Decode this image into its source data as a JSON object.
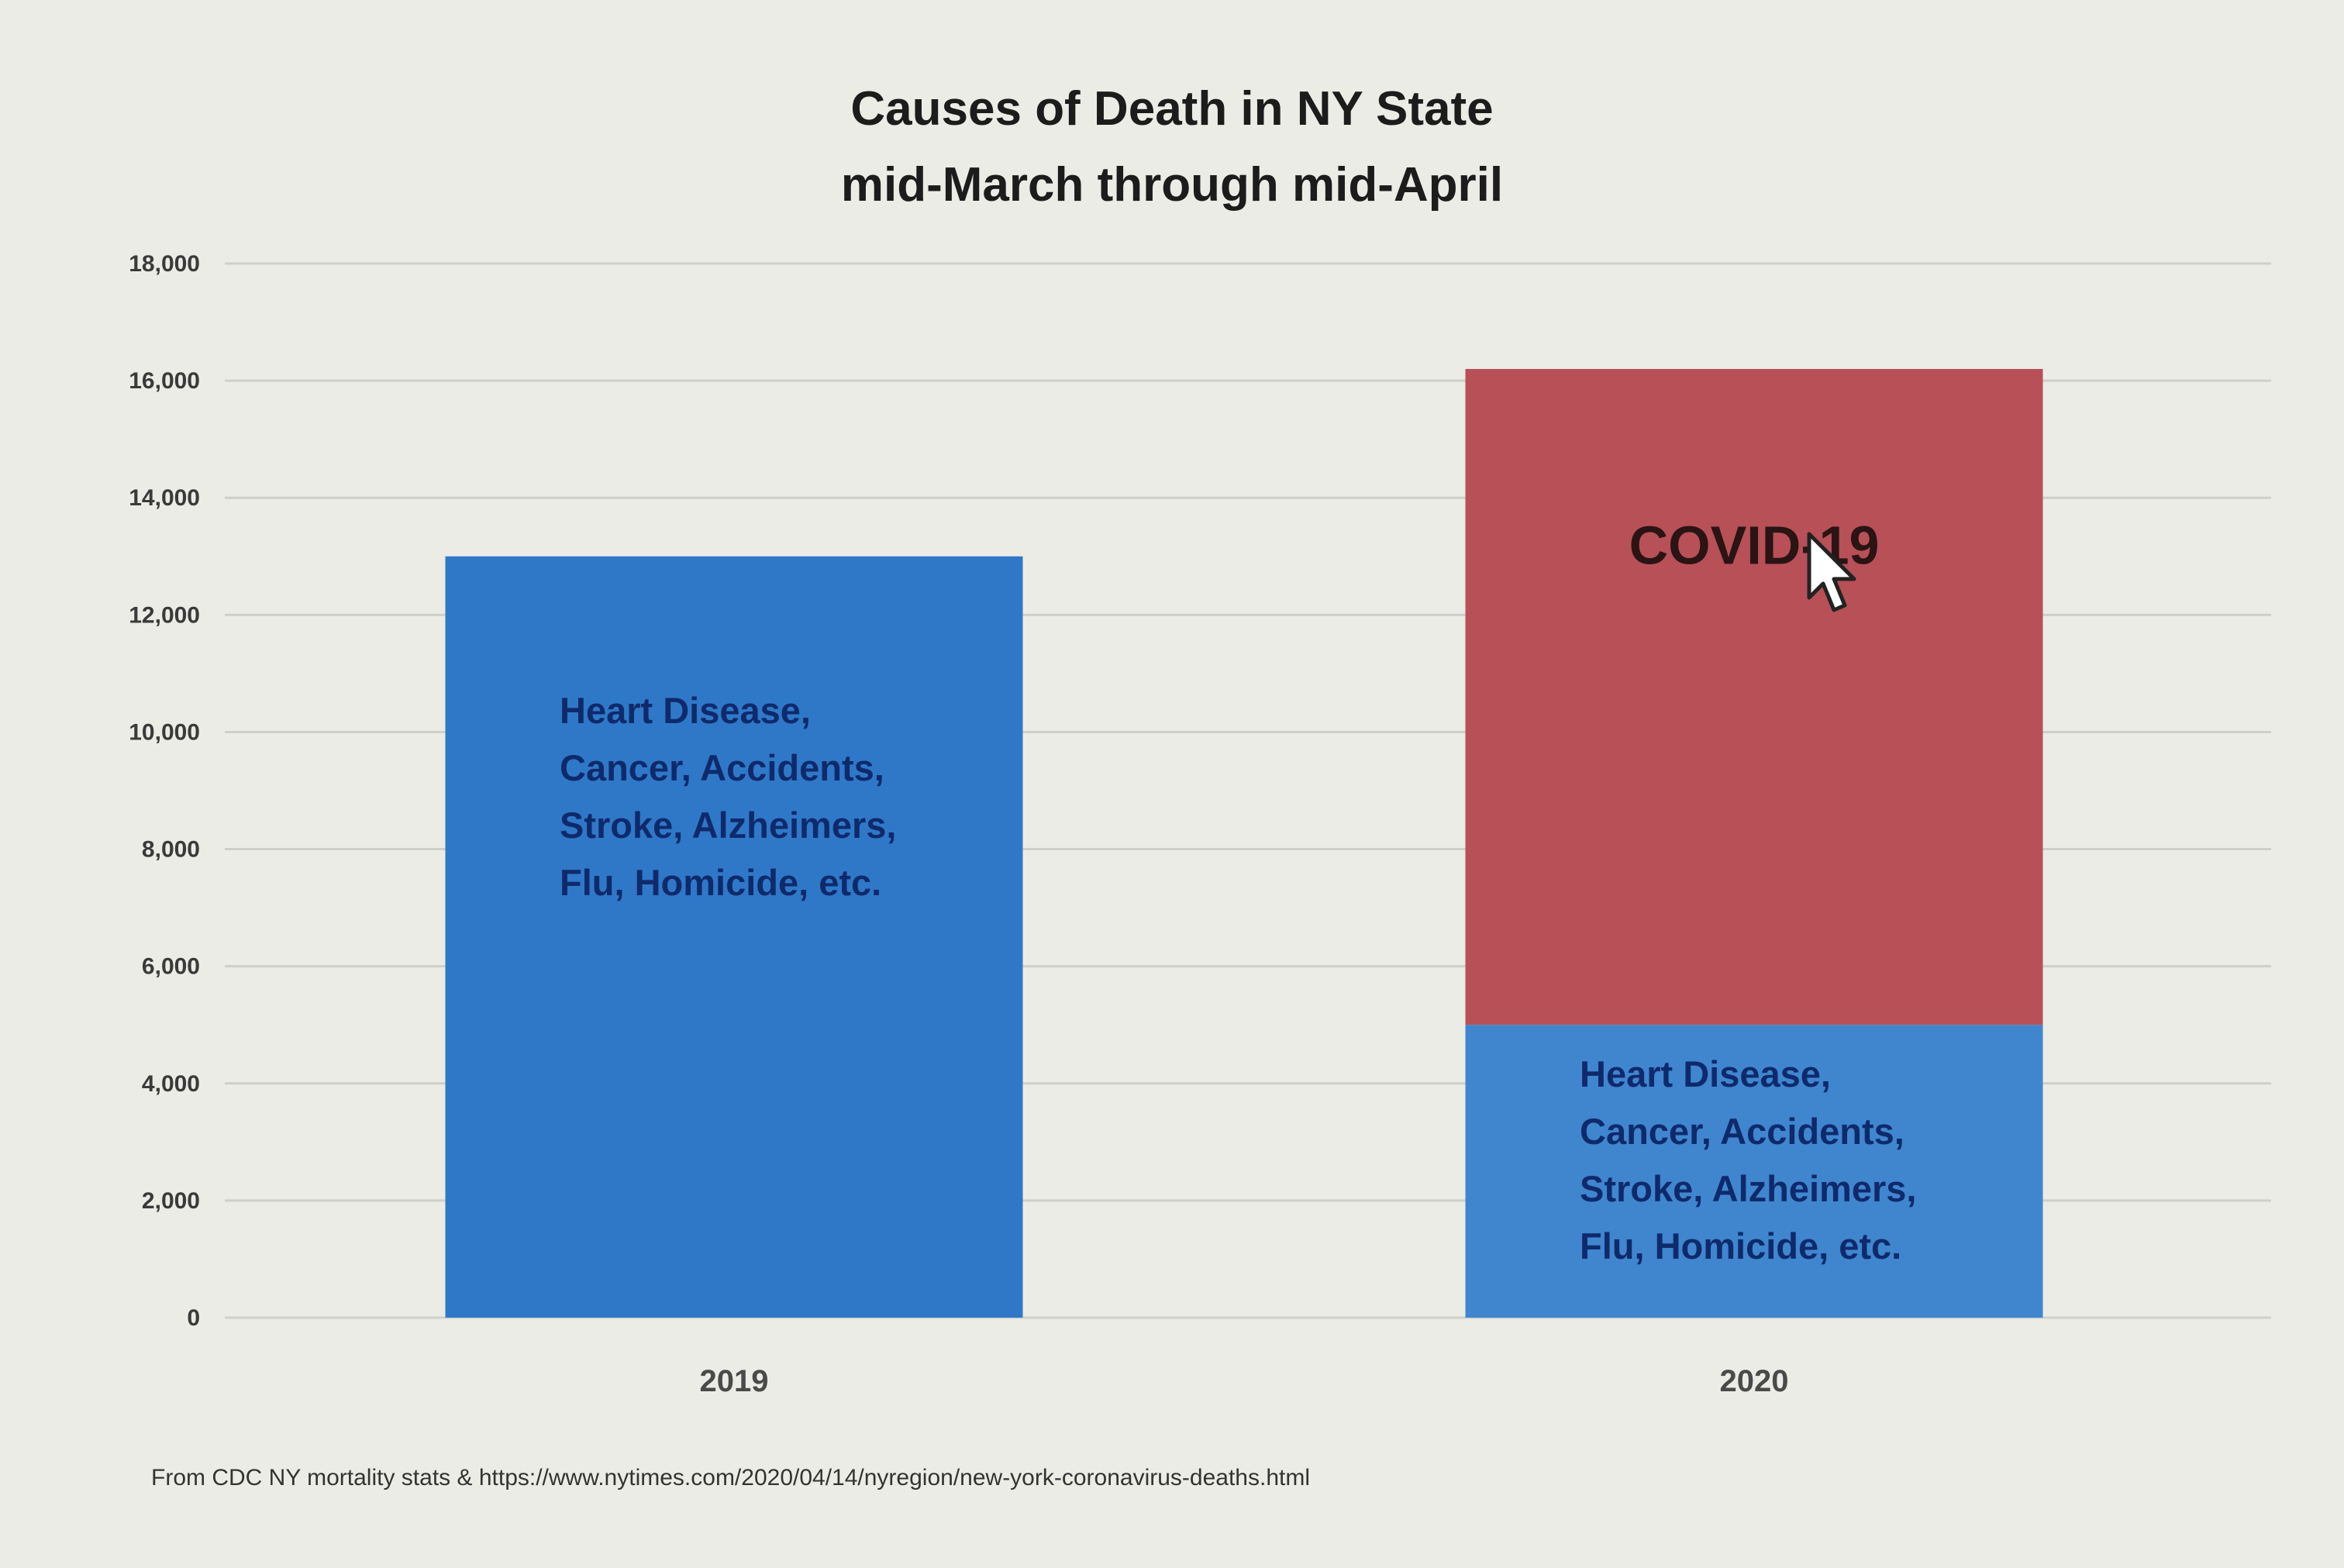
{
  "chart_data": {
    "type": "bar",
    "stacked": true,
    "title": "Causes of Death in NY State",
    "subtitle": "mid-March through mid-April",
    "categories": [
      "2019",
      "2020"
    ],
    "series": [
      {
        "name": "Heart Disease, Cancer, Accidents, Stroke, Alzheimers, Flu, Homicide, etc.",
        "values": [
          13000,
          5000
        ],
        "color": "#3f86cf",
        "label_lines": [
          "Heart Disease,",
          "Cancer, Accidents,",
          "Stroke, Alzheimers,",
          "Flu, Homicide, etc."
        ]
      },
      {
        "name": "COVID-19",
        "values": [
          0,
          11200
        ],
        "color": "#b85057"
      }
    ],
    "bar_colors": {
      "2019_base": "#2f78c8",
      "2020_base": "#3f86cf",
      "2020_covid": "#b85057"
    },
    "ylim": [
      0,
      18000
    ],
    "yticks": [
      "0",
      "2,000",
      "4,000",
      "6,000",
      "8,000",
      "10,000",
      "12,000",
      "14,000",
      "16,000",
      "18,000"
    ],
    "ytick_values": [
      0,
      2000,
      4000,
      6000,
      8000,
      10000,
      12000,
      14000,
      16000,
      18000
    ],
    "grid": true,
    "xlabel": "",
    "ylabel": ""
  },
  "title_line1": "Causes of Death in NY State",
  "title_line2": "mid-March through mid-April",
  "source_note": "From CDC NY mortality stats & https://www.nytimes.com/2020/04/14/nyregion/new-york-coronavirus-deaths.html",
  "cursor_icon": "pointer-arrow-icon"
}
